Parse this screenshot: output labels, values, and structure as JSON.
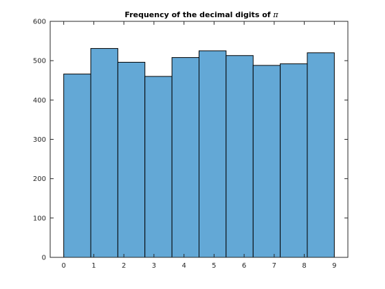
{
  "chart_data": {
    "type": "bar",
    "title_text": "Frequency of the decimal digits of ",
    "title_symbol": "π",
    "xlabel": "",
    "ylabel": "",
    "categories": [
      0,
      1,
      2,
      3,
      4,
      5,
      6,
      7,
      8,
      9
    ],
    "values": [
      466,
      531,
      496,
      460,
      508,
      525,
      513,
      488,
      492,
      520
    ],
    "xlim": [
      -0.45,
      9.45
    ],
    "ylim": [
      0,
      600
    ],
    "xticks": [
      0,
      1,
      2,
      3,
      4,
      5,
      6,
      7,
      8,
      9
    ],
    "yticks": [
      0,
      100,
      200,
      300,
      400,
      500,
      600
    ],
    "grid": false,
    "legend": "none",
    "colors": {
      "bar_fill": "#63a8d6",
      "bar_edge": "#000000",
      "axis": "#262626"
    }
  }
}
